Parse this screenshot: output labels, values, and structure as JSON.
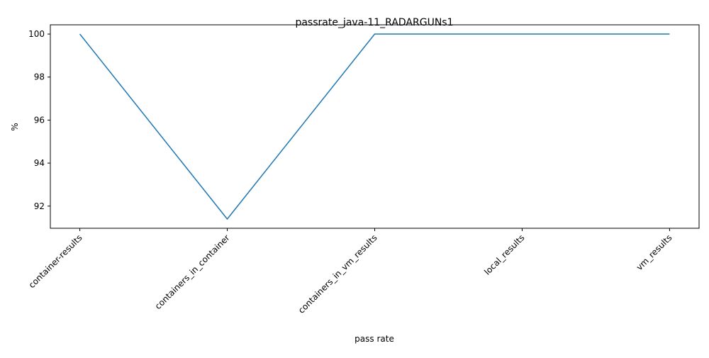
{
  "chart_data": {
    "type": "line",
    "title": "passrate_java-11_RADARGUNs1",
    "xlabel": "pass rate",
    "ylabel": "%",
    "categories": [
      "container-results",
      "containers_in_container",
      "containers_in_vm_results",
      "local_results",
      "vm_results"
    ],
    "series": [
      {
        "values": [
          100,
          91.4,
          100,
          100,
          100
        ],
        "color": "#1f77b4"
      }
    ],
    "ylim": [
      90.97,
      100.43
    ],
    "yticks": [
      92,
      94,
      96,
      98,
      100
    ],
    "grid": false,
    "legend": "none"
  }
}
